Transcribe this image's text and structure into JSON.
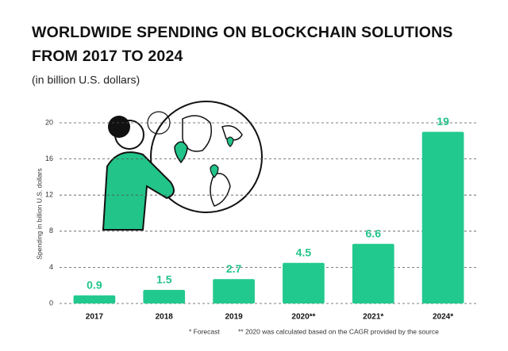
{
  "chart_data": {
    "type": "bar",
    "title": [
      "WORLDWIDE SPENDING ON BLOCKCHAIN SOLUTIONS",
      "FROM 2017 TO 2024"
    ],
    "subtitle": "(in billion U.S. dollars)",
    "y_label": "Spending in billion U.S. dollars",
    "categories": [
      "2017",
      "2018",
      "2019",
      "2020**",
      "2021*",
      "2024*"
    ],
    "values": [
      0.9,
      1.5,
      2.7,
      4.5,
      6.6,
      19
    ],
    "color": "#22c98e",
    "ylim": [
      0,
      20
    ],
    "yticks": [
      0,
      4,
      8,
      12,
      16,
      20
    ],
    "grid": true,
    "footnotes": [
      "* Forecast",
      "** 2020 was calculated based on the CAGR provided by the source"
    ]
  }
}
